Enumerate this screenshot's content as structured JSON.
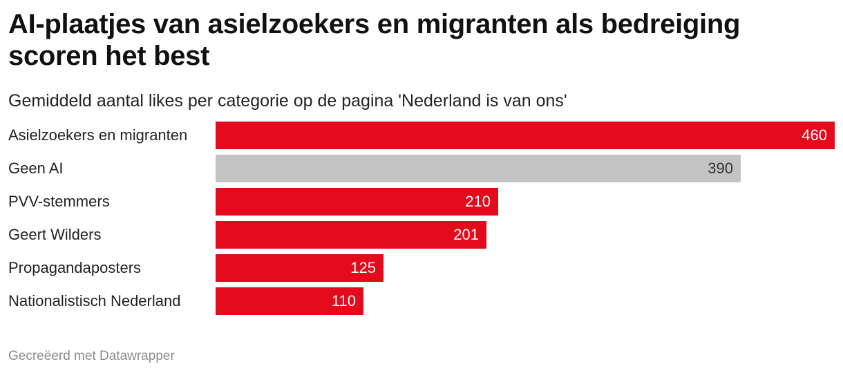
{
  "chart_data": {
    "type": "bar",
    "orientation": "horizontal",
    "title": "AI-plaatjes van asielzoekers en migranten als bedreiging scoren het best",
    "subtitle": "Gemiddeld aantal likes per categorie op de pagina 'Nederland is van ons'",
    "categories": [
      "Asielzoekers en migranten",
      "Geen AI",
      "PVV-stemmers",
      "Geert Wilders",
      "Propagandaposters",
      "Nationalistisch Nederland"
    ],
    "values": [
      460,
      390,
      210,
      201,
      125,
      110
    ],
    "bar_colors": [
      "#e30a1b",
      "#c3c3c3",
      "#e30a1b",
      "#e30a1b",
      "#e30a1b",
      "#e30a1b"
    ],
    "label_colors": [
      "#ffffff",
      "#333333",
      "#ffffff",
      "#ffffff",
      "#ffffff",
      "#ffffff"
    ],
    "xlim": [
      0,
      460
    ],
    "grid": false,
    "legend": "none"
  },
  "footer": {
    "credit": "Gecreëerd met Datawrapper"
  }
}
